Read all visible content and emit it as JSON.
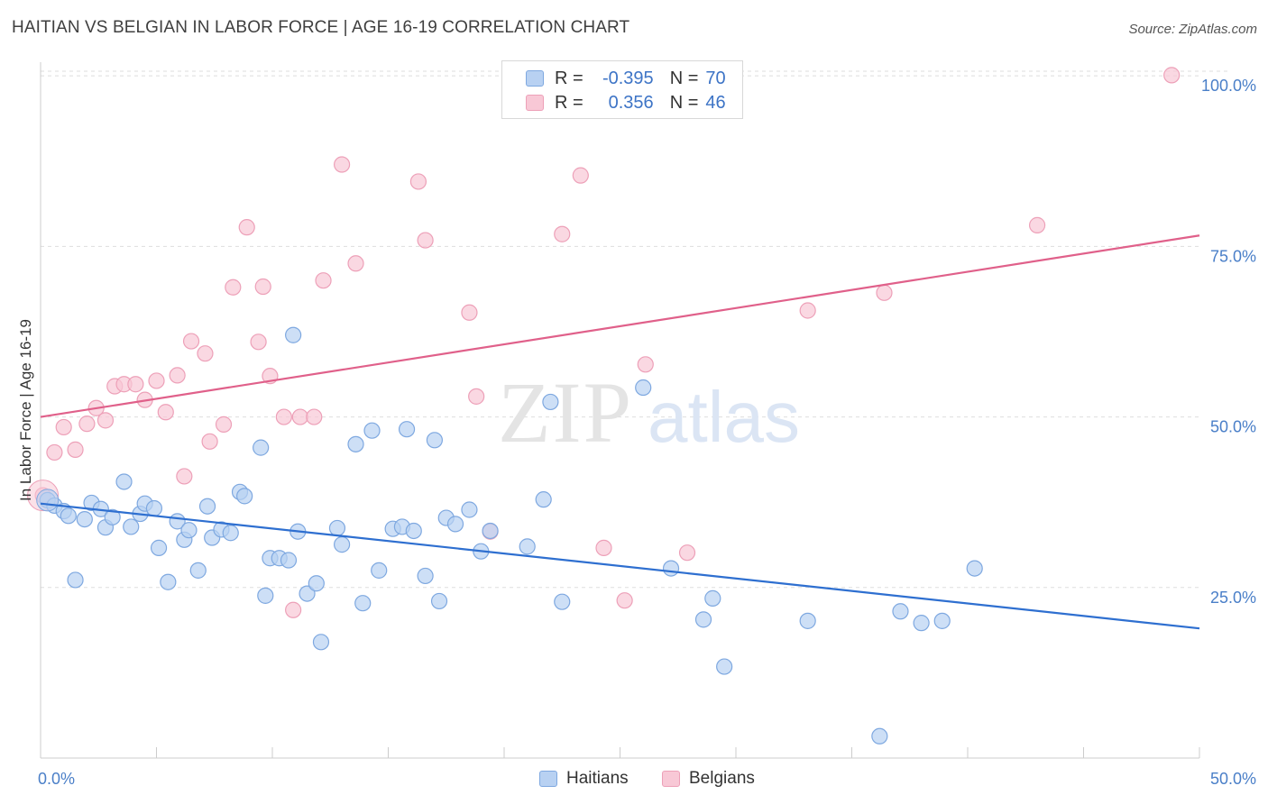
{
  "title": "HAITIAN VS BELGIAN IN LABOR FORCE | AGE 16-19 CORRELATION CHART",
  "source": "Source: ZipAtlas.com",
  "watermark": {
    "zip": "ZIP",
    "atlas": "atlas"
  },
  "legend": {
    "r_label": "R =",
    "n_label": "N =",
    "rows": [
      {
        "series": "Haitians",
        "r": "-0.395",
        "n": "70"
      },
      {
        "series": "Belgians",
        "r": "0.356",
        "n": "46"
      }
    ]
  },
  "colors": {
    "haitians_fill": "#b8d1f2",
    "haitians_stroke": "#7ea8e0",
    "haitians_line": "#2e6fd0",
    "belgians_fill": "#f8c8d6",
    "belgians_stroke": "#eda0b8",
    "belgians_line": "#e0608a",
    "tick_label": "#4a7fc8",
    "grid": "#dddddd"
  },
  "chart_data": {
    "type": "scatter",
    "title": "HAITIAN VS BELGIAN IN LABOR FORCE | AGE 16-19 CORRELATION CHART",
    "xlabel": "",
    "ylabel": "In Labor Force | Age 16-19",
    "xlim": [
      0,
      50
    ],
    "ylim": [
      0,
      102
    ],
    "x_tick_labels": [
      {
        "value": 0,
        "label": "0.0%"
      },
      {
        "value": 50,
        "label": "50.0%"
      }
    ],
    "y_tick_labels": [
      {
        "value": 25,
        "label": "25.0%"
      },
      {
        "value": 50,
        "label": "50.0%"
      },
      {
        "value": 75,
        "label": "75.0%"
      },
      {
        "value": 100,
        "label": "100.0%"
      }
    ],
    "grid": true,
    "legend_position": "bottom-center",
    "series": [
      {
        "name": "Haitians",
        "trend": {
          "x": [
            0,
            50
          ],
          "y": [
            37.3,
            19.0
          ]
        },
        "points": [
          [
            0.3,
            37.8
          ],
          [
            0.6,
            37.0
          ],
          [
            1.0,
            36.2
          ],
          [
            1.2,
            35.5
          ],
          [
            1.5,
            26.1
          ],
          [
            1.9,
            35.0
          ],
          [
            2.2,
            37.4
          ],
          [
            2.6,
            36.5
          ],
          [
            2.8,
            33.8
          ],
          [
            3.1,
            35.3
          ],
          [
            3.6,
            40.5
          ],
          [
            3.9,
            33.9
          ],
          [
            4.3,
            35.8
          ],
          [
            4.5,
            37.3
          ],
          [
            4.9,
            36.6
          ],
          [
            5.1,
            30.8
          ],
          [
            5.5,
            25.8
          ],
          [
            5.9,
            34.7
          ],
          [
            6.2,
            32.0
          ],
          [
            6.4,
            33.4
          ],
          [
            6.8,
            27.5
          ],
          [
            7.2,
            36.9
          ],
          [
            7.4,
            32.3
          ],
          [
            7.8,
            33.5
          ],
          [
            8.2,
            33.0
          ],
          [
            8.6,
            39.0
          ],
          [
            8.8,
            38.4
          ],
          [
            9.5,
            45.5
          ],
          [
            9.7,
            23.8
          ],
          [
            9.9,
            29.3
          ],
          [
            10.3,
            29.3
          ],
          [
            10.7,
            29.0
          ],
          [
            10.9,
            62.0
          ],
          [
            11.1,
            33.2
          ],
          [
            11.5,
            24.1
          ],
          [
            11.9,
            25.6
          ],
          [
            12.1,
            17.0
          ],
          [
            12.8,
            33.7
          ],
          [
            13.0,
            31.3
          ],
          [
            13.6,
            46.0
          ],
          [
            13.9,
            22.7
          ],
          [
            14.3,
            48.0
          ],
          [
            14.6,
            27.5
          ],
          [
            15.2,
            33.6
          ],
          [
            15.6,
            33.9
          ],
          [
            15.8,
            48.2
          ],
          [
            16.1,
            33.3
          ],
          [
            16.6,
            26.7
          ],
          [
            17.0,
            46.6
          ],
          [
            17.2,
            23.0
          ],
          [
            17.5,
            35.2
          ],
          [
            17.9,
            34.3
          ],
          [
            18.5,
            36.4
          ],
          [
            19.0,
            30.3
          ],
          [
            19.4,
            33.3
          ],
          [
            21.0,
            31.0
          ],
          [
            21.7,
            37.9
          ],
          [
            22.0,
            52.2
          ],
          [
            22.5,
            22.9
          ],
          [
            26.0,
            54.3
          ],
          [
            27.2,
            27.8
          ],
          [
            28.6,
            20.3
          ],
          [
            29.0,
            23.4
          ],
          [
            29.5,
            13.4
          ],
          [
            33.1,
            20.1
          ],
          [
            36.2,
            3.2
          ],
          [
            37.1,
            21.5
          ],
          [
            38.0,
            19.8
          ],
          [
            38.9,
            20.1
          ],
          [
            40.3,
            27.8
          ]
        ]
      },
      {
        "name": "Belgians",
        "trend": {
          "x": [
            0,
            50
          ],
          "y": [
            50.0,
            76.6
          ]
        },
        "points": [
          [
            0.1,
            38.5
          ],
          [
            0.6,
            44.8
          ],
          [
            1.0,
            48.5
          ],
          [
            1.5,
            45.2
          ],
          [
            2.0,
            49.0
          ],
          [
            2.4,
            51.3
          ],
          [
            2.8,
            49.5
          ],
          [
            3.2,
            54.5
          ],
          [
            3.6,
            54.8
          ],
          [
            4.1,
            54.8
          ],
          [
            4.5,
            52.5
          ],
          [
            5.0,
            55.3
          ],
          [
            5.4,
            50.7
          ],
          [
            5.9,
            56.1
          ],
          [
            6.2,
            41.3
          ],
          [
            6.5,
            61.1
          ],
          [
            7.1,
            59.3
          ],
          [
            7.3,
            46.4
          ],
          [
            7.9,
            48.9
          ],
          [
            8.3,
            69.0
          ],
          [
            8.9,
            77.8
          ],
          [
            9.4,
            61.0
          ],
          [
            9.6,
            69.1
          ],
          [
            9.9,
            56.0
          ],
          [
            10.5,
            50.0
          ],
          [
            10.9,
            21.7
          ],
          [
            11.2,
            50.0
          ],
          [
            11.8,
            50.0
          ],
          [
            12.2,
            70.0
          ],
          [
            13.0,
            87.0
          ],
          [
            13.6,
            72.5
          ],
          [
            16.3,
            84.5
          ],
          [
            16.6,
            75.9
          ],
          [
            18.5,
            65.3
          ],
          [
            18.8,
            53.0
          ],
          [
            19.4,
            33.2
          ],
          [
            22.5,
            76.8
          ],
          [
            23.3,
            85.4
          ],
          [
            24.3,
            30.8
          ],
          [
            25.2,
            23.1
          ],
          [
            26.1,
            57.7
          ],
          [
            27.9,
            30.1
          ],
          [
            33.1,
            65.6
          ],
          [
            36.4,
            68.2
          ],
          [
            43.0,
            78.1
          ],
          [
            48.8,
            100.1
          ]
        ]
      }
    ]
  }
}
